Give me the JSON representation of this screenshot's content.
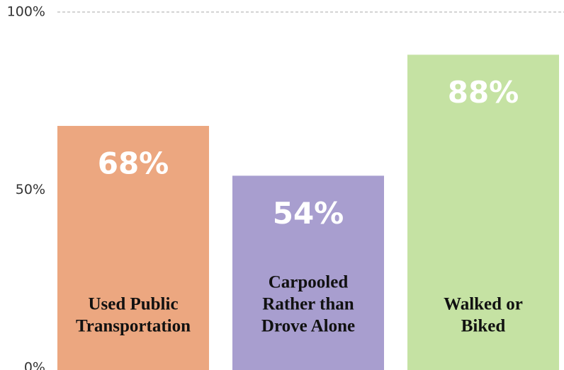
{
  "chart_data": {
    "type": "bar",
    "categories": [
      [
        "Used Public",
        "Transportation"
      ],
      [
        "Carpooled",
        "Rather than",
        "Drove Alone"
      ],
      [
        "Walked or",
        "Biked"
      ]
    ],
    "values": [
      68,
      54,
      88
    ],
    "value_labels": [
      "68%",
      "54%",
      "88%"
    ],
    "colors": [
      "#eca780",
      "#a89ecf",
      "#c5e2a3"
    ],
    "ylim": [
      0,
      100
    ],
    "yticks": [
      {
        "value": 0,
        "label": "0%"
      },
      {
        "value": 50,
        "label": "50%"
      },
      {
        "value": 100,
        "label": "100%"
      }
    ]
  }
}
